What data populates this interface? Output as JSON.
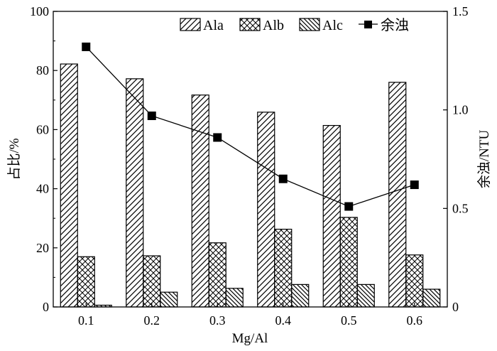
{
  "chart_data": {
    "type": "bar",
    "categories": [
      "0.1",
      "0.2",
      "0.3",
      "0.4",
      "0.5",
      "0.6"
    ],
    "xlabel": "Mg/Al",
    "ylabel": "占比/%",
    "ylabel_right": "余浊/NTU",
    "ylim": [
      0,
      100
    ],
    "ylim_right": [
      0,
      1.5
    ],
    "yticks": [
      "0",
      "20",
      "40",
      "60",
      "80",
      "100"
    ],
    "yticks_right": [
      "0",
      "0.5",
      "1.0",
      "1.5"
    ],
    "legend_position": "top-right",
    "series": [
      {
        "name": "Ala",
        "type": "bar",
        "pattern": "forward-hatch",
        "values": [
          82.2,
          77.2,
          71.7,
          65.9,
          61.4,
          76.0
        ]
      },
      {
        "name": "Alb",
        "type": "bar",
        "pattern": "cross-hatch",
        "values": [
          17.0,
          17.3,
          21.7,
          26.3,
          30.3,
          17.6
        ]
      },
      {
        "name": "Alc",
        "type": "bar",
        "pattern": "back-hatch",
        "values": [
          0.6,
          5.0,
          6.3,
          7.6,
          7.6,
          6.0
        ]
      },
      {
        "name": "余浊",
        "type": "line",
        "axis": "right",
        "values": [
          1.32,
          0.97,
          0.86,
          0.65,
          0.51,
          0.62
        ]
      }
    ]
  }
}
